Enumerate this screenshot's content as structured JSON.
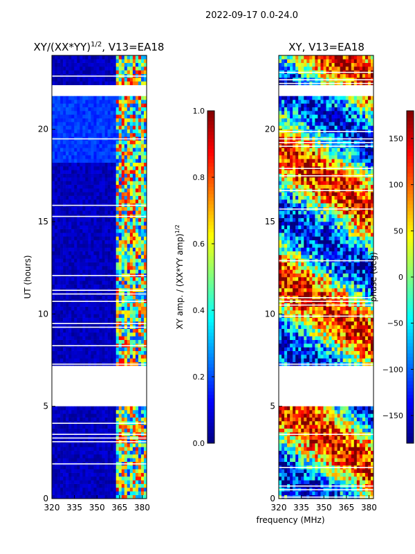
{
  "suptitle": "2022-09-17 0.0-24.0",
  "xlabel": "frequency (MHz)",
  "chart_data": [
    {
      "type": "heatmap",
      "title": "XY/(XX*YY)^1/2, V13=EA18",
      "title_main": "XY/(XX*YY)",
      "title_sup": "1/2",
      "title_rest": ", V13=EA18",
      "xlabel": "frequency (MHz)",
      "ylabel": "UT (hours)",
      "xlim": [
        320,
        383
      ],
      "ylim": [
        0,
        24
      ],
      "xticks": [
        "320",
        "335",
        "350",
        "365",
        "380"
      ],
      "yticks": [
        "0",
        "5",
        "10",
        "15",
        "20"
      ],
      "colorbar": {
        "label_main": "XY amp. / (XX*YY amp)",
        "label_sup": "1/2",
        "range": [
          0.0,
          1.0
        ],
        "ticks": [
          "0.0",
          "0.2",
          "0.4",
          "0.6",
          "0.8",
          "1.0"
        ]
      },
      "blank_hours": [
        [
          4.9,
          7.2
        ],
        [
          21.9,
          22.5
        ]
      ],
      "active_band_mhz": [
        361,
        382
      ],
      "value_description": "mostly low (~0.05) below 361 MHz, patchy 0.2-0.9 in 361-382 MHz"
    },
    {
      "type": "heatmap",
      "title": "XY, V13=EA18",
      "xlabel": "frequency (MHz)",
      "ylabel": "",
      "xlim": [
        320,
        383
      ],
      "ylim": [
        0,
        24
      ],
      "xticks": [
        "320",
        "335",
        "350",
        "365",
        "380"
      ],
      "yticks": [
        "0",
        "5",
        "10",
        "15",
        "20"
      ],
      "colorbar": {
        "label_main": "phase (deg)",
        "label_sup": "",
        "range": [
          -180,
          180
        ],
        "ticks": [
          "−150",
          "−100",
          "−50",
          "0",
          "50",
          "100",
          "150"
        ]
      },
      "blank_hours": [
        [
          4.9,
          7.2
        ],
        [
          21.9,
          22.5
        ]
      ],
      "value_description": "phase varies across full range -180 to 180 deg"
    }
  ],
  "colors": {
    "low": "#00007f",
    "mid": "#7fff7f",
    "high": "#7f0000"
  }
}
